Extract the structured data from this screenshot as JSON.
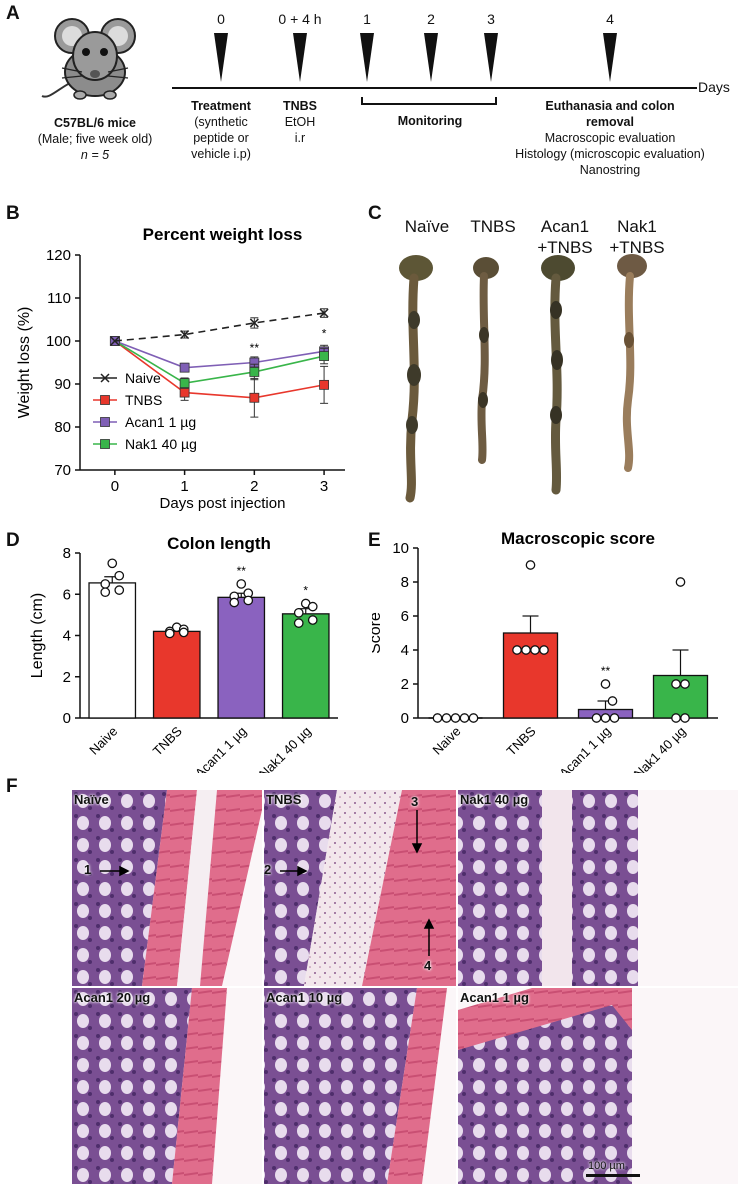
{
  "panels": {
    "a": "A",
    "b": "B",
    "c": "C",
    "d": "D",
    "e": "E",
    "f": "F"
  },
  "timeline": {
    "mouse": {
      "strain": "C57BL/6 mice",
      "detail": "(Male; five week old)",
      "n": "n = 5"
    },
    "ticks": [
      "0",
      "0 + 4 h",
      "1",
      "2",
      "3",
      "4"
    ],
    "axis_label": "Days",
    "treatment": {
      "title": "Treatment",
      "lines": [
        "(synthetic",
        "peptide or",
        "vehicle i.p)"
      ]
    },
    "tnbs": {
      "title": "TNBS",
      "lines": [
        "EtOH",
        "i.r"
      ]
    },
    "monitoring": "Monitoring",
    "euthanasia": {
      "title_lines": [
        "Euthanasia and colon",
        "removal"
      ],
      "lines": [
        "Macroscopic evaluation",
        "Histology (microscopic evaluation)",
        "Nanostring"
      ]
    }
  },
  "chart_b": {
    "type": "line",
    "title": "Percent weight loss",
    "xlabel": "Days post injection",
    "ylabel": "Weight loss (%)",
    "x": [
      0,
      1,
      2,
      3
    ],
    "xlim": [
      -0.5,
      3.3
    ],
    "ylim": [
      70,
      120
    ],
    "yticks": [
      70,
      80,
      90,
      100,
      110,
      120
    ],
    "xticks": [
      0,
      1,
      2,
      3
    ],
    "series": [
      {
        "name": "Naive",
        "values": [
          100,
          101.5,
          104.2,
          106.5
        ],
        "err": [
          0,
          0.8,
          1.2,
          1.0
        ],
        "color": "#222222",
        "marker": "x",
        "dash": true
      },
      {
        "name": "TNBS",
        "values": [
          100,
          88,
          86.8,
          89.8
        ],
        "err": [
          0,
          1.8,
          4.5,
          4.3
        ],
        "color": "#e8372c",
        "marker": "square"
      },
      {
        "name": "Acan1 1 µg",
        "values": [
          100,
          93.8,
          95,
          97.6
        ],
        "err": [
          0,
          1,
          1.3,
          1.4
        ],
        "color": "#7f5fb5",
        "marker": "square"
      },
      {
        "name": "Nak1 40 µg",
        "values": [
          100,
          90.2,
          92.8,
          96.5
        ],
        "err": [
          0,
          1.2,
          1.8,
          1.8
        ],
        "color": "#39b54a",
        "marker": "square"
      }
    ],
    "annotations": [
      {
        "x": 2,
        "y": 97.5,
        "text": "**"
      },
      {
        "x": 3,
        "y": 100.8,
        "text": "*"
      }
    ]
  },
  "colons": {
    "labels": [
      [
        "Naïve"
      ],
      [
        "TNBS"
      ],
      [
        "Acan1",
        "+TNBS"
      ],
      [
        "Nak1",
        "+TNBS"
      ]
    ]
  },
  "chart_d": {
    "type": "bar",
    "title": "Colon length",
    "ylabel": "Length (cm)",
    "categories": [
      "Naive",
      "TNBS",
      "Acan1 1 µg",
      "Nak1 40 µg"
    ],
    "values": [
      6.55,
      4.2,
      5.85,
      5.05
    ],
    "err": [
      0.3,
      0.1,
      0.2,
      0.25
    ],
    "colors": [
      "#ffffff",
      "#e8372c",
      "#8a62bf",
      "#39b54a"
    ],
    "points": [
      [
        7.5,
        6.9,
        6.5,
        6.2,
        6.1
      ],
      [
        4.4,
        4.3,
        4.2,
        4.15,
        4.1
      ],
      [
        6.5,
        6.05,
        5.9,
        5.7,
        5.6
      ],
      [
        5.55,
        5.4,
        5.1,
        4.75,
        4.6
      ]
    ],
    "ylim": [
      0,
      8
    ],
    "yticks": [
      0,
      2,
      4,
      6,
      8
    ],
    "annotations": [
      "",
      "",
      "**",
      "*"
    ]
  },
  "chart_e": {
    "type": "bar",
    "title": "Macroscopic score",
    "ylabel": "Score",
    "categories": [
      "Naive",
      "TNBS",
      "Acan1 1 µg",
      "Nak1 40 µg"
    ],
    "values": [
      0,
      5,
      0.5,
      2.5
    ],
    "err": [
      0,
      1,
      0.5,
      1.5
    ],
    "colors": [
      "#ffffff",
      "#e8372c",
      "#8a62bf",
      "#39b54a"
    ],
    "points": [
      [
        0,
        0,
        0,
        0,
        0
      ],
      [
        9,
        4,
        4,
        4,
        4
      ],
      [
        2,
        1,
        0,
        0,
        0
      ],
      [
        8,
        2,
        2,
        0,
        0
      ]
    ],
    "ylim": [
      0,
      10
    ],
    "yticks": [
      0,
      2,
      4,
      6,
      8,
      10
    ],
    "annotations": [
      "",
      "",
      "**",
      ""
    ]
  },
  "histology": {
    "tiles": [
      "Naïve",
      "TNBS",
      "Nak1 40 µg",
      "Acan1 20 µg",
      "Acan1 10 µg",
      "Acan1 1 µg"
    ],
    "arrows": [
      "1",
      "2",
      "3",
      "4"
    ],
    "scale_bar": "100 µm"
  }
}
